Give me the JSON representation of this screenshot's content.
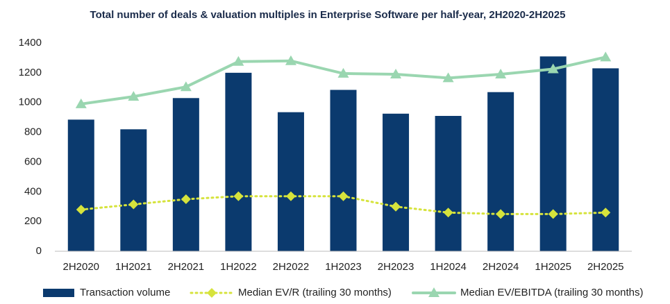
{
  "chart_data": {
    "type": "combo",
    "title": "Total number of deals & valuation multiples in Enterprise Software per half-year, 2H2020-2H2025",
    "categories": [
      "2H2020",
      "1H2021",
      "2H2021",
      "1H2022",
      "2H2022",
      "1H2023",
      "2H2023",
      "1H2024",
      "2H2024",
      "1H2025",
      "2H2025"
    ],
    "series": [
      {
        "name": "Transaction volume",
        "type": "bar",
        "color": "#0b3a6e",
        "values": [
          885,
          820,
          1030,
          1200,
          935,
          1085,
          925,
          910,
          1070,
          1310,
          1230
        ]
      },
      {
        "name": "Median EV/R (trailing 30 months)",
        "type": "line",
        "style": "dotted",
        "marker": "diamond",
        "color": "#d6e33c",
        "values": [
          280,
          315,
          350,
          370,
          370,
          370,
          300,
          260,
          250,
          250,
          260
        ]
      },
      {
        "name": "Median EV/EBITDA (trailing 30 months)",
        "type": "line",
        "style": "solid",
        "marker": "triangle",
        "color": "#9ad6b0",
        "values": [
          990,
          1040,
          1105,
          1275,
          1280,
          1195,
          1190,
          1165,
          1190,
          1225,
          1305
        ]
      }
    ],
    "ylim": [
      0,
      1400
    ],
    "yticks": [
      0,
      200,
      400,
      600,
      800,
      1000,
      1200,
      1400
    ],
    "grid": false,
    "legend": "bottom"
  }
}
